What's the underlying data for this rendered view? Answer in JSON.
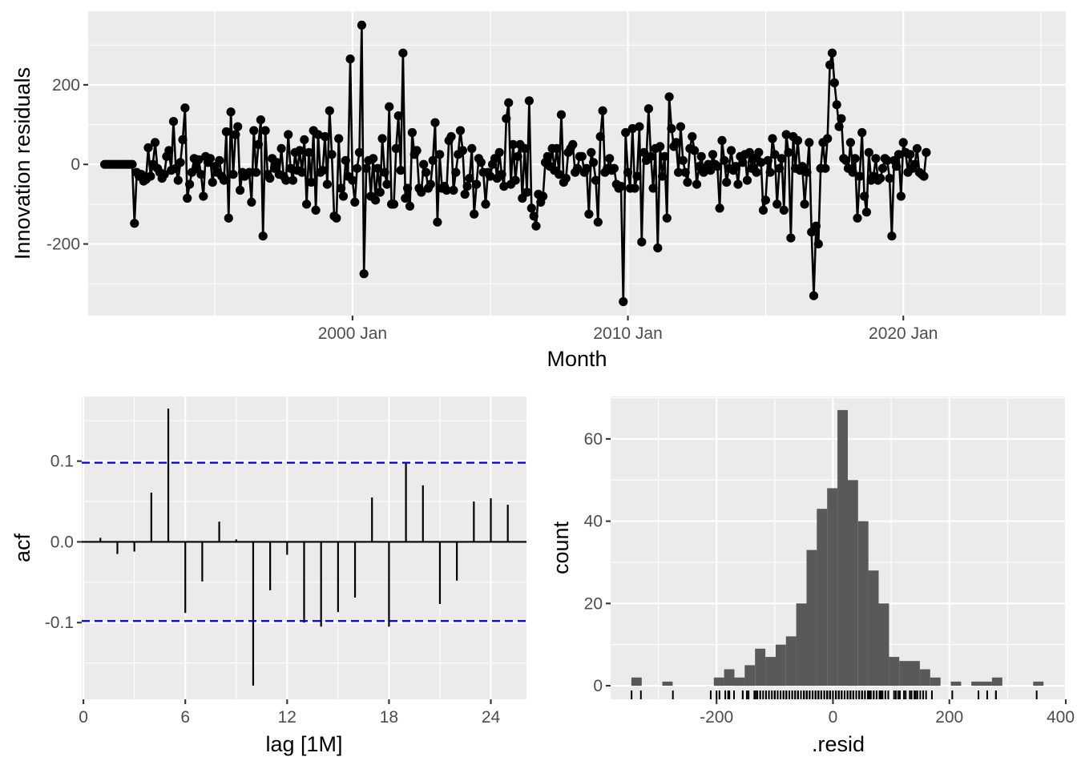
{
  "chart_data": [
    {
      "type": "line",
      "xlabel": "Month",
      "ylabel": "Innovation residuals",
      "x_tick_labels": [
        "2000 Jan",
        "2010 Jan",
        "2020 Jan"
      ],
      "x_tick_years": [
        2000,
        2010,
        2020
      ],
      "xlim": [
        1990.4,
        2025.9
      ],
      "y_tick_labels": [
        "-200",
        "0",
        "200"
      ],
      "y_tick_values": [
        -200,
        0,
        200
      ],
      "ylim": [
        -380,
        385
      ],
      "start_year": 1991,
      "points_per_year": 12,
      "grid": true,
      "values": [
        0,
        0,
        0,
        0,
        0,
        0,
        0,
        0,
        0,
        0,
        0,
        0,
        0,
        -148,
        -20,
        -30,
        -25,
        -42,
        -38,
        42,
        -30,
        0,
        55,
        -10,
        -20,
        -35,
        -25,
        20,
        35,
        -15,
        108,
        -10,
        -40,
        5,
        62,
        142,
        -85,
        -50,
        -20,
        15,
        -10,
        12,
        -25,
        -80,
        20,
        5,
        15,
        -45,
        -5,
        -20,
        10,
        -30,
        -40,
        82,
        -135,
        132,
        -25,
        75,
        95,
        -65,
        -20,
        -30,
        -25,
        -20,
        -95,
        85,
        -20,
        50,
        112,
        -180,
        85,
        -25,
        -35,
        15,
        -10,
        5,
        -25,
        40,
        -30,
        -40,
        75,
        -10,
        -40,
        30,
        -15,
        35,
        -20,
        62,
        -100,
        30,
        -45,
        85,
        -115,
        75,
        -20,
        -15,
        70,
        -50,
        135,
        25,
        -130,
        -135,
        65,
        -60,
        -80,
        10,
        -30,
        265,
        -40,
        -95,
        -10,
        30,
        350,
        -275,
        -10,
        10,
        -80,
        15,
        -90,
        -10,
        -70,
        65,
        -20,
        -50,
        145,
        -100,
        -100,
        40,
        122,
        -15,
        280,
        -85,
        -60,
        -105,
        80,
        25,
        35,
        -60,
        -70,
        0,
        -20,
        -60,
        -50,
        10,
        105,
        -145,
        25,
        -60,
        -55,
        -65,
        60,
        70,
        -65,
        -20,
        25,
        85,
        35,
        -75,
        -55,
        -35,
        40,
        -125,
        -50,
        15,
        5,
        -20,
        -100,
        -20,
        -30,
        0,
        15,
        -35,
        30,
        -25,
        -55,
        115,
        155,
        -50,
        50,
        -40,
        20,
        50,
        -85,
        40,
        -70,
        160,
        -110,
        -130,
        -155,
        -75,
        -95,
        -80,
        5,
        20,
        -5,
        40,
        -15,
        40,
        -25,
        125,
        -45,
        -35,
        30,
        40,
        50,
        -20,
        -10,
        20,
        20,
        -20,
        -10,
        -125,
        30,
        5,
        -40,
        -145,
        70,
        135,
        -20,
        -10,
        15,
        -15,
        -10,
        -50,
        -60,
        -55,
        -345,
        80,
        -20,
        -60,
        90,
        -60,
        -30,
        95,
        -195,
        30,
        10,
        140,
        20,
        -60,
        40,
        -210,
        45,
        -30,
        20,
        -135,
        170,
        90,
        45,
        55,
        -20,
        95,
        10,
        -20,
        -45,
        40,
        70,
        35,
        -50,
        -5,
        20,
        -20,
        -10,
        0,
        -15,
        25,
        0,
        -5,
        -110,
        60,
        10,
        -45,
        -10,
        35,
        -15,
        -5,
        -50,
        20,
        5,
        25,
        -40,
        30,
        -10,
        15,
        -20,
        30,
        5,
        -115,
        -90,
        10,
        -20,
        65,
        25,
        -100,
        -10,
        15,
        -115,
        75,
        30,
        -185,
        70,
        -10,
        60,
        -15,
        -5,
        -100,
        -20,
        55,
        -170,
        -330,
        -155,
        -200,
        -10,
        55,
        -10,
        65,
        250,
        280,
        205,
        150,
        95,
        115,
        15,
        10,
        -10,
        55,
        -20,
        15,
        -135,
        -30,
        80,
        -80,
        -120,
        30,
        -40,
        -30,
        15,
        -40,
        -35,
        -10,
        15,
        10,
        -35,
        -180,
        10,
        -5,
        25,
        -80,
        55,
        30,
        -20,
        25,
        -10,
        0,
        40,
        -20,
        -25,
        -30,
        30
      ]
    },
    {
      "type": "bar",
      "xlabel": "lag [1M]",
      "ylabel": "acf",
      "lags": [
        1,
        2,
        3,
        4,
        5,
        6,
        7,
        8,
        9,
        10,
        11,
        12,
        13,
        14,
        15,
        16,
        17,
        18,
        19,
        20,
        21,
        22,
        23,
        24,
        25
      ],
      "values": [
        0.005,
        -0.015,
        -0.012,
        0.061,
        0.165,
        -0.088,
        -0.049,
        0.025,
        0.003,
        -0.178,
        -0.06,
        -0.016,
        -0.1,
        -0.105,
        -0.087,
        -0.069,
        0.055,
        -0.105,
        0.097,
        0.07,
        -0.077,
        -0.048,
        0.05,
        0.054,
        0.046
      ],
      "ci": 0.098,
      "ci_color": "#0000cc",
      "x_tick_labels": [
        "0",
        "6",
        "12",
        "18",
        "24"
      ],
      "x_tick_values": [
        0,
        6,
        12,
        18,
        24
      ],
      "xlim": [
        -0.1,
        26.1
      ],
      "y_tick_labels": [
        "-0.1",
        "0.0",
        "0.1"
      ],
      "y_tick_values": [
        -0.1,
        0,
        0.1
      ],
      "ylim": [
        -0.195,
        0.18
      ],
      "grid": true
    },
    {
      "type": "bar",
      "subtype": "histogram",
      "xlabel": ".resid",
      "ylabel": "count",
      "bin_width": 17.7,
      "bin_starts": [
        -346.3,
        -328.6,
        -310.9,
        -293.2,
        -275.5,
        -257.8,
        -240.1,
        -222.4,
        -204.7,
        -187,
        -169.3,
        -151.6,
        -133.9,
        -116.2,
        -98.5,
        -80.8,
        -63.1,
        -45.4,
        -27.7,
        -10,
        7.7,
        25.4,
        43.1,
        60.8,
        78.5,
        96.2,
        113.9,
        131.6,
        149.3,
        167,
        184.7,
        202.4,
        220.1,
        237.8,
        255.5,
        273.2,
        290.9,
        308.6,
        326.3,
        344
      ],
      "counts": [
        2,
        0,
        0,
        1,
        0,
        0,
        0,
        0,
        2,
        4,
        2,
        5,
        9,
        7,
        10,
        12,
        20,
        33,
        43,
        48,
        67,
        50,
        40,
        28,
        20,
        7,
        6,
        6,
        4,
        2,
        0,
        1,
        0,
        1,
        1,
        2,
        0,
        0,
        0,
        1
      ],
      "bar_color": "#595959",
      "rug_values": [
        -346,
        -330,
        -275,
        -210,
        -200,
        -195,
        -185,
        -180,
        -178,
        -170,
        -155,
        -155,
        -148,
        -145,
        -135,
        -135,
        -133,
        -130,
        -130,
        -125,
        -125,
        -120,
        -115,
        -115,
        -115,
        -110,
        -110,
        -105,
        -100,
        -100,
        -100,
        -100,
        -95,
        -95,
        -90,
        -85,
        -85,
        -80,
        -80,
        -80,
        -80,
        -75,
        -75,
        -70,
        -70,
        -65,
        -65,
        -60,
        -60,
        -60,
        -60,
        -55,
        -55,
        -55,
        -50,
        -50,
        -50,
        -50,
        -45,
        -45,
        -45,
        -45,
        -40,
        -40,
        -40,
        -40,
        -35,
        -35,
        -35,
        -35,
        -30,
        -30,
        -30,
        -30,
        -25,
        -25,
        -25,
        -25,
        -20,
        -20,
        -20,
        -20,
        -20,
        -15,
        -15,
        -15,
        -15,
        -10,
        -10,
        -10,
        -10,
        -10,
        -5,
        -5,
        -5,
        -5,
        0,
        0,
        0,
        0,
        0,
        5,
        5,
        5,
        5,
        10,
        10,
        10,
        10,
        15,
        15,
        15,
        15,
        20,
        20,
        20,
        20,
        25,
        25,
        25,
        25,
        30,
        30,
        30,
        30,
        35,
        35,
        35,
        40,
        40,
        40,
        40,
        45,
        45,
        50,
        50,
        50,
        55,
        55,
        55,
        60,
        60,
        62,
        65,
        65,
        70,
        70,
        75,
        75,
        80,
        80,
        82,
        85,
        85,
        90,
        95,
        95,
        105,
        108,
        112,
        115,
        122,
        125,
        132,
        135,
        140,
        142,
        145,
        150,
        155,
        160,
        170,
        205,
        250,
        265,
        280,
        280,
        350
      ],
      "x_tick_labels": [
        "-200",
        "0",
        "200",
        "400"
      ],
      "x_tick_values": [
        -200,
        0,
        200,
        400
      ],
      "xlim": [
        -382,
        400
      ],
      "y_tick_labels": [
        "0",
        "20",
        "40",
        "60"
      ],
      "y_tick_values": [
        0,
        20,
        40,
        60
      ],
      "ylim": [
        -3.3,
        70.3
      ],
      "grid": true
    }
  ]
}
